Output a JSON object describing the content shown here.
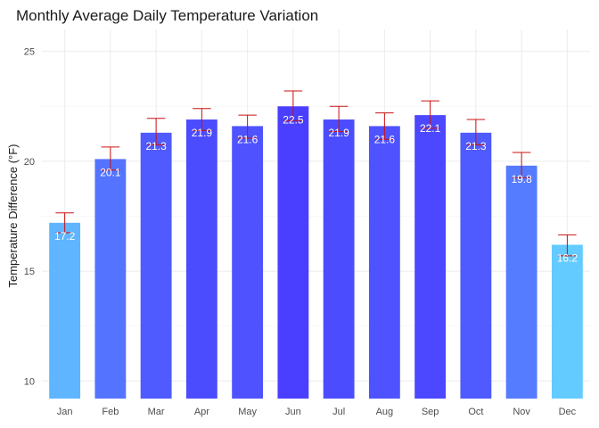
{
  "chart_data": {
    "type": "bar",
    "title": "Monthly Average Daily Temperature Variation",
    "xlabel": "",
    "ylabel": "Temperature Difference (°F)",
    "categories": [
      "Jan",
      "Feb",
      "Mar",
      "Apr",
      "May",
      "Jun",
      "Jul",
      "Aug",
      "Sep",
      "Oct",
      "Nov",
      "Dec"
    ],
    "values": [
      17.2,
      20.1,
      21.3,
      21.9,
      21.6,
      22.5,
      21.9,
      21.6,
      22.1,
      21.3,
      19.8,
      16.2
    ],
    "data_labels": [
      "17.2",
      "20.1",
      "21.3",
      "21.9",
      "21.6",
      "22.5",
      "21.9",
      "21.6",
      "22.1",
      "21.3",
      "19.8",
      "16.2"
    ],
    "error_low": [
      16.75,
      19.6,
      20.75,
      21.4,
      21.05,
      21.85,
      21.35,
      21.0,
      21.5,
      20.75,
      19.25,
      15.7
    ],
    "error_high": [
      17.65,
      20.65,
      21.95,
      22.4,
      22.1,
      23.2,
      22.5,
      22.2,
      22.75,
      21.9,
      20.4,
      16.65
    ],
    "ylim": [
      9.2,
      26.0
    ],
    "yticks": [
      10,
      15,
      20,
      25
    ],
    "ytick_labels": [
      "10",
      "15",
      "20",
      "25"
    ],
    "grid": true,
    "legend": "none",
    "colors": {
      "low": "#63cbff",
      "high": "#4a3fff",
      "errorbar": "#cc1111",
      "label_text": "#ffffff"
    }
  }
}
